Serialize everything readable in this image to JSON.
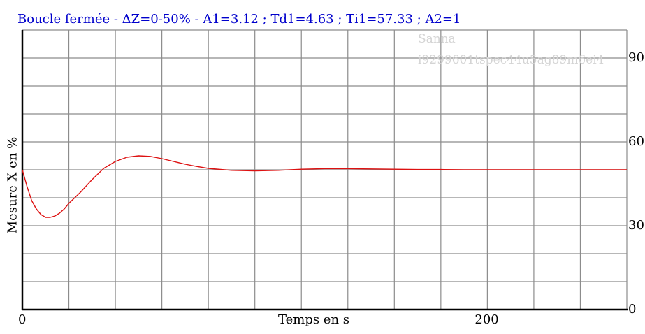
{
  "chart_data": {
    "type": "line",
    "title": "Boucle fermée - ΔZ=0-50% - A1=3.12 ; Td1=4.63 ; Ti1=57.33 ; A2=1",
    "xlabel": "Temps en s",
    "ylabel": "Mesure X en %",
    "xlim": [
      0,
      260
    ],
    "ylim": [
      0,
      100
    ],
    "grid": true,
    "x_tick_labels": [
      "0",
      "200"
    ],
    "x_ticks": [
      0,
      200
    ],
    "y_tick_labels": [
      "0",
      "30",
      "60",
      "90"
    ],
    "y_ticks": [
      0,
      30,
      60,
      90
    ],
    "series": [
      {
        "color": "#dd1111",
        "x": [
          0,
          2,
          4,
          6,
          8,
          10,
          12,
          14,
          16,
          18,
          20,
          25,
          30,
          35,
          40,
          45,
          50,
          55,
          60,
          65,
          70,
          75,
          80,
          90,
          100,
          110,
          120,
          130,
          140,
          150,
          160,
          170,
          180,
          190,
          200,
          210,
          220,
          230,
          240,
          250,
          260
        ],
        "values": [
          50,
          44,
          39,
          36,
          34,
          33,
          33,
          33.5,
          34.5,
          36,
          38,
          42,
          46.5,
          50.5,
          53,
          54.5,
          55,
          54.8,
          54,
          53,
          52,
          51.2,
          50.5,
          49.8,
          49.6,
          49.8,
          50.2,
          50.4,
          50.4,
          50.3,
          50.2,
          50.1,
          50.1,
          50,
          50,
          50,
          50,
          50,
          50,
          50,
          50
        ]
      }
    ]
  },
  "watermark": {
    "user": "Sanna",
    "id": "i9299601tspec44u5ag89m6ei4"
  }
}
